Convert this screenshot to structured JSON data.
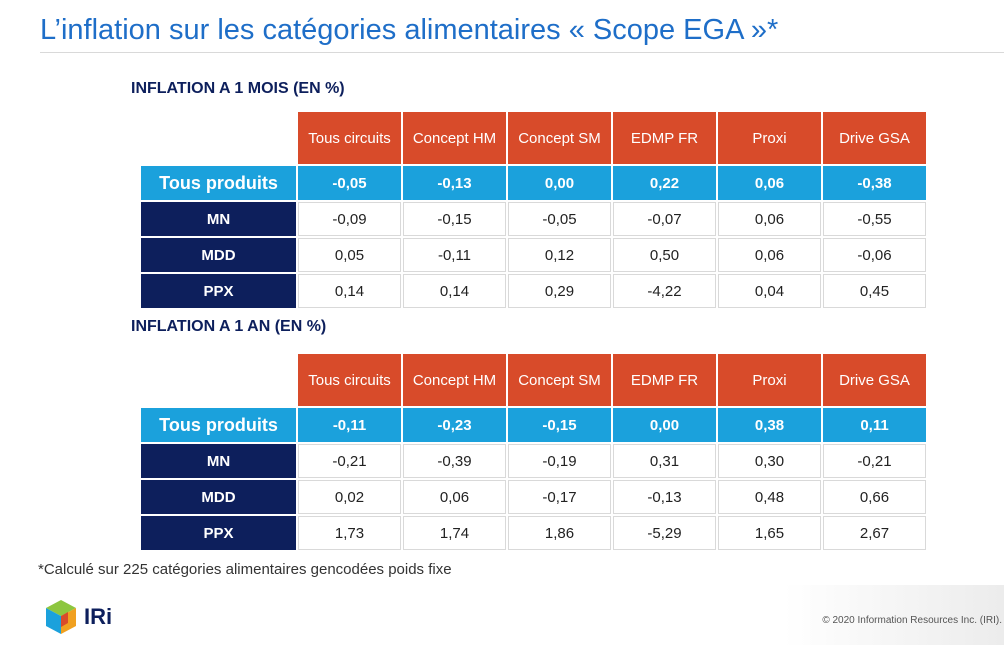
{
  "title": "L’inflation sur les catégories alimentaires « Scope EGA »*",
  "columns": [
    "Tous circuits",
    "Concept HM",
    "Concept SM",
    "EDMP FR",
    "Proxi",
    "Drive GSA"
  ],
  "tables": [
    {
      "heading": "INFLATION A 1 MOIS (EN %)",
      "rows": [
        {
          "label": "Tous produits",
          "values": [
            "-0,05",
            "-0,13",
            "0,00",
            "0,22",
            "0,06",
            "-0,38"
          ]
        },
        {
          "label": "MN",
          "values": [
            "-0,09",
            "-0,15",
            "-0,05",
            "-0,07",
            "0,06",
            "-0,55"
          ]
        },
        {
          "label": "MDD",
          "values": [
            "0,05",
            "-0,11",
            "0,12",
            "0,50",
            "0,06",
            "-0,06"
          ]
        },
        {
          "label": "PPX",
          "values": [
            "0,14",
            "0,14",
            "0,29",
            "-4,22",
            "0,04",
            "0,45"
          ]
        }
      ]
    },
    {
      "heading": "INFLATION A 1 AN (EN %)",
      "rows": [
        {
          "label": "Tous produits",
          "values": [
            "-0,11",
            "-0,23",
            "-0,15",
            "0,00",
            "0,38",
            "0,11"
          ]
        },
        {
          "label": "MN",
          "values": [
            "-0,21",
            "-0,39",
            "-0,19",
            "0,31",
            "0,30",
            "-0,21"
          ]
        },
        {
          "label": "MDD",
          "values": [
            "0,02",
            "0,06",
            "-0,17",
            "-0,13",
            "0,48",
            "0,66"
          ]
        },
        {
          "label": "PPX",
          "values": [
            "1,73",
            "1,74",
            "1,86",
            "-5,29",
            "1,65",
            "2,67"
          ]
        }
      ]
    }
  ],
  "footnote": "*Calculé sur 225 catégories alimentaires gencodées poids fixe",
  "logo": {
    "text": "IRi",
    "icon": "iri-cube-logo-icon"
  },
  "copyright": "© 2020 Information Resources Inc. (IRI).",
  "colors": {
    "title": "#1e6ec8",
    "header": "#d84b2a",
    "total": "#1ba1dc",
    "rowhead": "#0d1f5c"
  }
}
